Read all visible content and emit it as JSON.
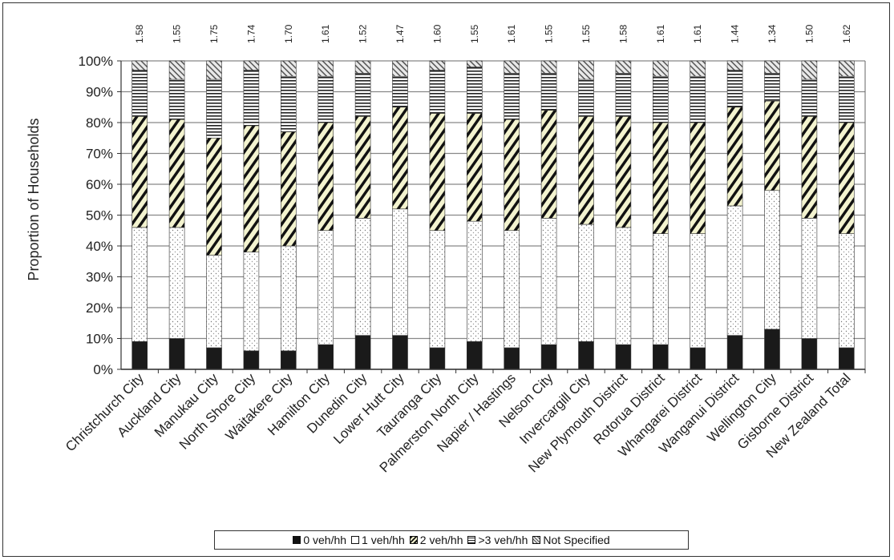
{
  "chart_data": {
    "type": "bar",
    "stacked": true,
    "title": "",
    "xlabel": "",
    "ylabel": "Proportion of Households",
    "ylim": [
      0,
      100
    ],
    "yticks": [
      "0%",
      "10%",
      "20%",
      "30%",
      "40%",
      "50%",
      "60%",
      "70%",
      "80%",
      "90%",
      "100%"
    ],
    "grid": true,
    "legend_position": "bottom",
    "categories": [
      "Christchurch City",
      "Auckland City",
      "Manukau City",
      "North Shore City",
      "Waitakere City",
      "Hamilton City",
      "Dunedin City",
      "Lower Hutt City",
      "Tauranga City",
      "Palmerston North City",
      "Napier / Hastings",
      "Nelson City",
      "Invercargill City",
      "New Plymouth District",
      "Rotorua District",
      "Whangarei District",
      "Wanganui District",
      "Wellington City",
      "Gisborne District",
      "New Zealand Total"
    ],
    "top_labels": [
      "1.58",
      "1.55",
      "1.75",
      "1.74",
      "1.70",
      "1.61",
      "1.52",
      "1.47",
      "1.60",
      "1.55",
      "1.61",
      "1.55",
      "1.55",
      "1.58",
      "1.61",
      "1.61",
      "1.44",
      "1.34",
      "1.50",
      "1.62"
    ],
    "series": [
      {
        "name": "0 veh/hh",
        "values": [
          9,
          10,
          7,
          6,
          6,
          8,
          11,
          11,
          7,
          9,
          7,
          8,
          9,
          8,
          8,
          7,
          11,
          13,
          10,
          7
        ]
      },
      {
        "name": "1 veh/hh",
        "values": [
          37,
          36,
          30,
          32,
          34,
          37,
          38,
          41,
          38,
          39,
          38,
          41,
          38,
          38,
          36,
          37,
          42,
          45,
          39,
          37
        ]
      },
      {
        "name": "2 veh/hh",
        "values": [
          36,
          35,
          38,
          41,
          37,
          35,
          33,
          33,
          38,
          35,
          36,
          35,
          35,
          36,
          36,
          36,
          32,
          29,
          33,
          36
        ]
      },
      {
        "name": ">3 veh/hh",
        "values": [
          15,
          13,
          19,
          18,
          18,
          15,
          14,
          10,
          14,
          15,
          15,
          12,
          12,
          14,
          15,
          15,
          12,
          9,
          12,
          15
        ]
      },
      {
        "name": "Not Specified",
        "values": [
          3,
          6,
          6,
          3,
          5,
          5,
          4,
          5,
          3,
          2,
          4,
          4,
          6,
          4,
          5,
          5,
          3,
          4,
          6,
          5
        ]
      }
    ]
  },
  "legend": {
    "items": [
      "0 veh/hh",
      "1 veh/hh",
      "2 veh/hh",
      ">3 veh/hh",
      "Not Specified"
    ]
  }
}
